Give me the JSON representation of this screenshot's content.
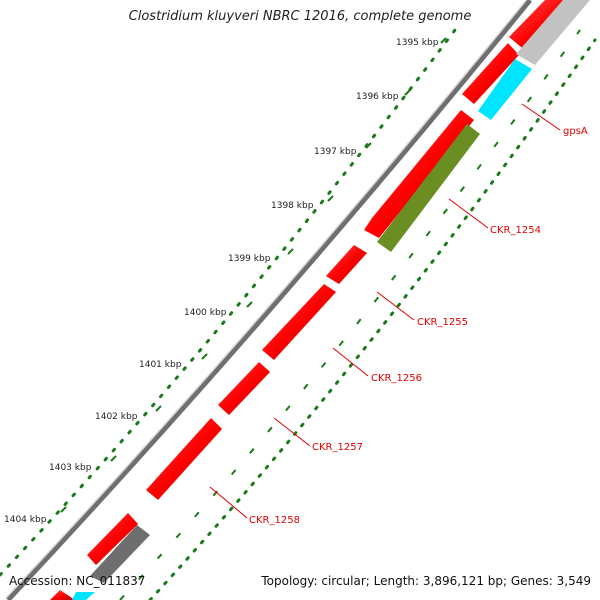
{
  "title": "Clostridium kluyveri NBRC 12016, complete genome",
  "footer": {
    "accession": "Accession: NC_011837",
    "summary": "Topology: circular; Length: 3,896,121 bp; Genes: 3,549"
  },
  "colors": {
    "backbone": "#8c8c8c",
    "forward_cds": "#ff0000",
    "reverse_cds": "#ff0000",
    "gene_green": "#6b8e23",
    "gene_cyan": "#00e5ff",
    "gene_gray": "#bdbdbd",
    "gene_darkgray": "#6e6e6e",
    "gc_ticks": "#1a7a1a",
    "label": "#e00000"
  },
  "kbp_ticks": [
    "1395 kbp",
    "1396 kbp",
    "1397 kbp",
    "1398 kbp",
    "1399 kbp",
    "1400 kbp",
    "1401 kbp",
    "1402 kbp",
    "1403 kbp",
    "1404 kbp"
  ],
  "gene_labels": [
    "gpsA",
    "CKR_1254",
    "CKR_1255",
    "CKR_1256",
    "CKR_1257",
    "CKR_1258"
  ]
}
